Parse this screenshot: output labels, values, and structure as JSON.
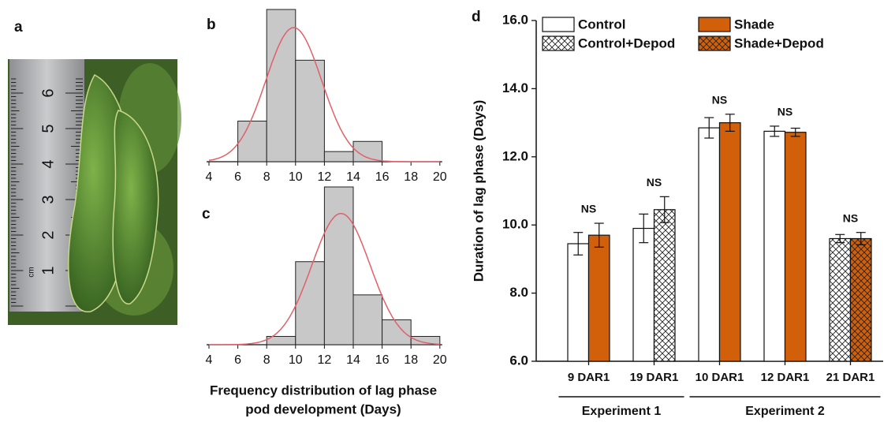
{
  "panels": [
    "a",
    "b",
    "c",
    "d"
  ],
  "photo": {
    "ruler_labels": [
      "1",
      "2",
      "3",
      "4",
      "5",
      "6"
    ],
    "unit": "cm"
  },
  "shared_xlabel": [
    "Frequency distribution of lag phase",
    "pod development (Days)"
  ],
  "chart_data": [
    {
      "type": "histogram",
      "bins": [
        6,
        8,
        10,
        12,
        14,
        16
      ],
      "values": [
        4,
        15,
        10,
        1,
        2
      ],
      "color": "#c8c8c8",
      "fit_color": "#e0606a",
      "xlim": [
        4,
        20
      ],
      "xticks": [
        4,
        6,
        8,
        10,
        12,
        14,
        16,
        18,
        20
      ]
    },
    {
      "type": "histogram",
      "bins": [
        8,
        10,
        12,
        14,
        16,
        18,
        20
      ],
      "values": [
        1,
        10,
        19,
        6,
        3,
        1
      ],
      "color": "#c8c8c8",
      "fit_color": "#e0606a",
      "xlim": [
        4,
        20
      ],
      "xticks": [
        4,
        6,
        8,
        10,
        12,
        14,
        16,
        18,
        20
      ]
    },
    {
      "type": "bar",
      "ylabel": "Duration of lag phase (Days)",
      "categories": [
        "9 DAR1",
        "19 DAR1",
        "10 DAR1",
        "12 DAR1",
        "21 DAR1"
      ],
      "series": [
        {
          "name": "Control",
          "color": "#ffffff",
          "hatch": false,
          "values": [
            9.45,
            9.9,
            12.85,
            12.75,
            null
          ],
          "errors": [
            0.33,
            0.42,
            0.3,
            0.15,
            null
          ]
        },
        {
          "name": "Control+Depod",
          "color": "#ffffff",
          "hatch": true,
          "values": [
            null,
            10.45,
            null,
            null,
            9.6
          ],
          "errors": [
            null,
            0.38,
            null,
            null,
            0.12
          ]
        },
        {
          "name": "Shade",
          "color": "#d2600a",
          "hatch": false,
          "values": [
            9.7,
            null,
            13.0,
            12.72,
            null
          ],
          "errors": [
            0.35,
            null,
            0.25,
            0.12,
            null
          ]
        },
        {
          "name": "Shade+Depod",
          "color": "#d2600a",
          "hatch": true,
          "values": [
            null,
            null,
            null,
            null,
            9.6
          ],
          "errors": [
            null,
            null,
            null,
            null,
            0.18
          ]
        }
      ],
      "annotations": [
        "NS",
        "NS",
        "NS",
        "NS",
        "NS"
      ],
      "groups": [
        {
          "label": "Experiment 1",
          "categories": [
            "9 DAR1",
            "19 DAR1"
          ]
        },
        {
          "label": "Experiment 2",
          "categories": [
            "10 DAR1",
            "12 DAR1",
            "21 DAR1"
          ]
        }
      ],
      "ylim": [
        6,
        16
      ],
      "yticks": [
        {
          "value": 6,
          "label": "6.0"
        },
        {
          "value": 8,
          "label": "8.0"
        },
        {
          "value": 10,
          "label": "10.0"
        },
        {
          "value": 12,
          "label": "12.0"
        },
        {
          "value": 14,
          "label": "14.0"
        },
        {
          "value": 16,
          "label": "16.0"
        }
      ],
      "legend": "upper left"
    }
  ]
}
